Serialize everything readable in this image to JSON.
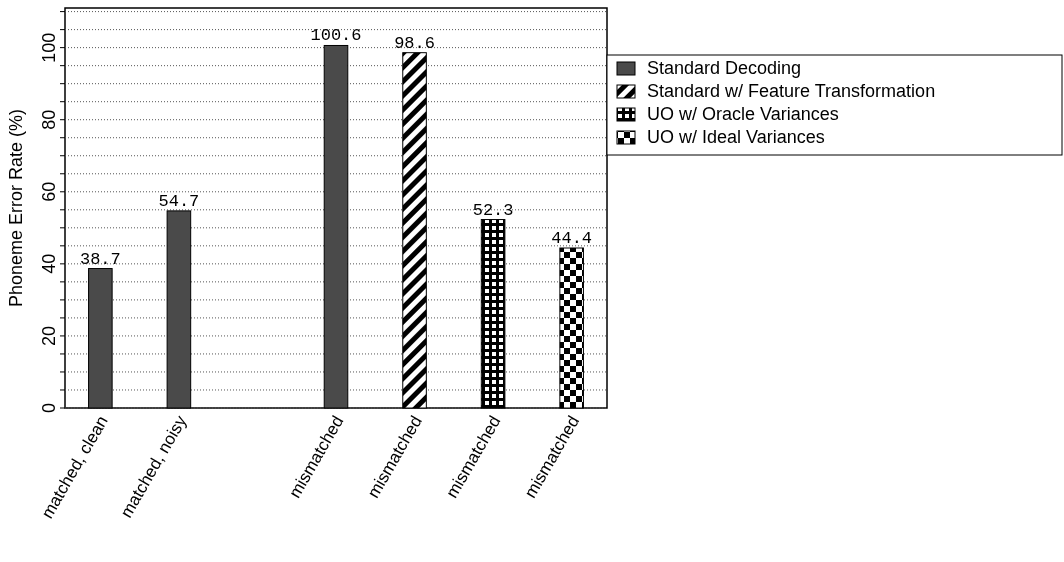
{
  "chart_data": {
    "type": "bar",
    "ylabel": "Phoneme Error Rate (%)",
    "categories": [
      "matched, clean",
      "matched, noisy",
      null,
      "mismatched",
      "mismatched",
      "mismatched",
      "mismatched"
    ],
    "series": [
      {
        "name": "Standard Decoding",
        "color": "#4a4a4a",
        "values": [
          38.7,
          54.7,
          null,
          100.6,
          null,
          null,
          null
        ]
      },
      {
        "name": "Standard w/ Feature Transformation",
        "color": "#000000",
        "values": [
          null,
          null,
          null,
          null,
          98.6,
          null,
          null
        ]
      },
      {
        "name": "UO w/ Oracle Variances",
        "color": "#000000",
        "values": [
          null,
          null,
          null,
          null,
          null,
          52.3,
          null
        ]
      },
      {
        "name": "UO w/ Ideal Variances",
        "color": "#000000",
        "values": [
          null,
          null,
          null,
          null,
          null,
          null,
          44.4
        ]
      }
    ],
    "ylim": [
      0,
      111
    ],
    "yticks": [
      0,
      {
        "value": 5,
        "label": null
      },
      {
        "value": 10,
        "label": null
      },
      {
        "value": 15,
        "label": null
      },
      20,
      {
        "value": 25,
        "label": null
      },
      {
        "value": 30,
        "label": null
      },
      {
        "value": 35,
        "label": null
      },
      40,
      {
        "value": 45,
        "label": null
      },
      {
        "value": 50,
        "label": null
      },
      {
        "value": 55,
        "label": null
      },
      60,
      {
        "value": 65,
        "label": null
      },
      {
        "value": 70,
        "label": null
      },
      {
        "value": 75,
        "label": null
      },
      80,
      {
        "value": 85,
        "label": null
      },
      {
        "value": 90,
        "label": null
      },
      {
        "value": 95,
        "label": null
      },
      100,
      {
        "value": 105,
        "label": null
      },
      {
        "value": 110,
        "label": null
      }
    ],
    "grid": "y",
    "legend": "top right",
    "data_labels": true
  }
}
